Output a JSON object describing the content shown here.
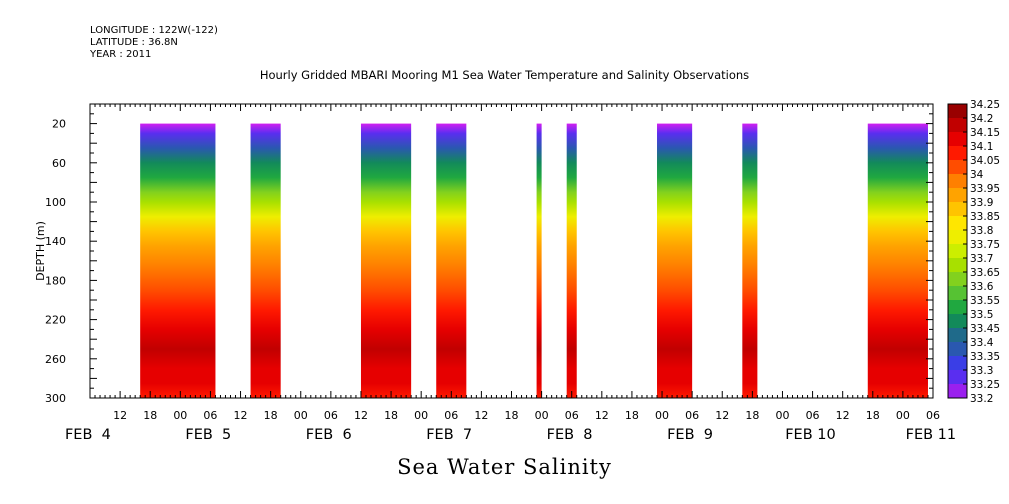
{
  "header": {
    "longitude": "LONGITUDE : 122W(-122)",
    "latitude": "LATITUDE : 36.8N",
    "year": "YEAR : 2011"
  },
  "title": "Hourly Gridded MBARI Mooring M1 Sea Water Temperature and Salinity Observations",
  "x_title": "Sea Water Salinity",
  "chart_data": {
    "type": "heatmap",
    "title": "Hourly Gridded MBARI Mooring M1 Sea Water Temperature and Salinity Observations",
    "xlabel": "Sea Water Salinity",
    "ylabel": "DEPTH (m)",
    "x_axis": {
      "unit": "hours since FEB 4 00:00, 2011",
      "range": [
        6,
        174
      ],
      "hour_tick_labels": [
        "12",
        "18",
        "00",
        "06",
        "12",
        "18",
        "00",
        "06",
        "12",
        "18",
        "00",
        "06",
        "12",
        "18",
        "00",
        "06",
        "12",
        "18",
        "00",
        "06",
        "12",
        "18",
        "00",
        "06",
        "12",
        "18",
        "00",
        "06"
      ],
      "date_labels": [
        "FEB  4",
        "FEB  5",
        "FEB  6",
        "FEB  7",
        "FEB  8",
        "FEB  9",
        "FEB 10",
        "FEB 11"
      ]
    },
    "y_axis": {
      "range": [
        0,
        300
      ],
      "inverted": true,
      "ticks": [
        "20",
        "60",
        "100",
        "140",
        "180",
        "220",
        "260",
        "300"
      ]
    },
    "data_segments": [
      {
        "start": 16,
        "end": 31
      },
      {
        "start": 38,
        "end": 44
      },
      {
        "start": 60,
        "end": 70
      },
      {
        "start": 75,
        "end": 81
      },
      {
        "start": 95,
        "end": 96
      },
      {
        "start": 101,
        "end": 103
      },
      {
        "start": 119,
        "end": 126
      },
      {
        "start": 136,
        "end": 139
      },
      {
        "start": 161,
        "end": 173
      }
    ],
    "depth_range": [
      20,
      300
    ],
    "salinity_profile": [
      {
        "depth": 20,
        "salinity": 33.22
      },
      {
        "depth": 30,
        "salinity": 33.33
      },
      {
        "depth": 45,
        "salinity": 33.42
      },
      {
        "depth": 60,
        "salinity": 33.5
      },
      {
        "depth": 75,
        "salinity": 33.58
      },
      {
        "depth": 90,
        "salinity": 33.66
      },
      {
        "depth": 100,
        "salinity": 33.72
      },
      {
        "depth": 115,
        "salinity": 33.82
      },
      {
        "depth": 130,
        "salinity": 33.9
      },
      {
        "depth": 145,
        "salinity": 33.96
      },
      {
        "depth": 165,
        "salinity": 34.02
      },
      {
        "depth": 190,
        "salinity": 34.06
      },
      {
        "depth": 210,
        "salinity": 34.1
      },
      {
        "depth": 230,
        "salinity": 34.16
      },
      {
        "depth": 250,
        "salinity": 34.21
      },
      {
        "depth": 270,
        "salinity": 34.19
      },
      {
        "depth": 285,
        "salinity": 34.15
      },
      {
        "depth": 300,
        "salinity": 34.13
      }
    ],
    "colorbar": {
      "levels": [
        "34.25",
        "34.2",
        "34.15",
        "34.1",
        "34.05",
        "34",
        "33.95",
        "33.9",
        "33.85",
        "33.8",
        "33.75",
        "33.7",
        "33.65",
        "33.6",
        "33.55",
        "33.5",
        "33.45",
        "33.4",
        "33.35",
        "33.3",
        "33.25",
        "33.2"
      ],
      "colors": [
        "#990000",
        "#c10000",
        "#e60000",
        "#ff1a00",
        "#ff4d00",
        "#ff8000",
        "#ffa300",
        "#ffc400",
        "#ffe600",
        "#eeee00",
        "#ccee00",
        "#a8e000",
        "#82d11e",
        "#56c233",
        "#20a840",
        "#128a5a",
        "#1f6a8a",
        "#2a58b0",
        "#3a3ee6",
        "#5a2ef0",
        "#9a20ee",
        "#d21ef0"
      ]
    }
  }
}
